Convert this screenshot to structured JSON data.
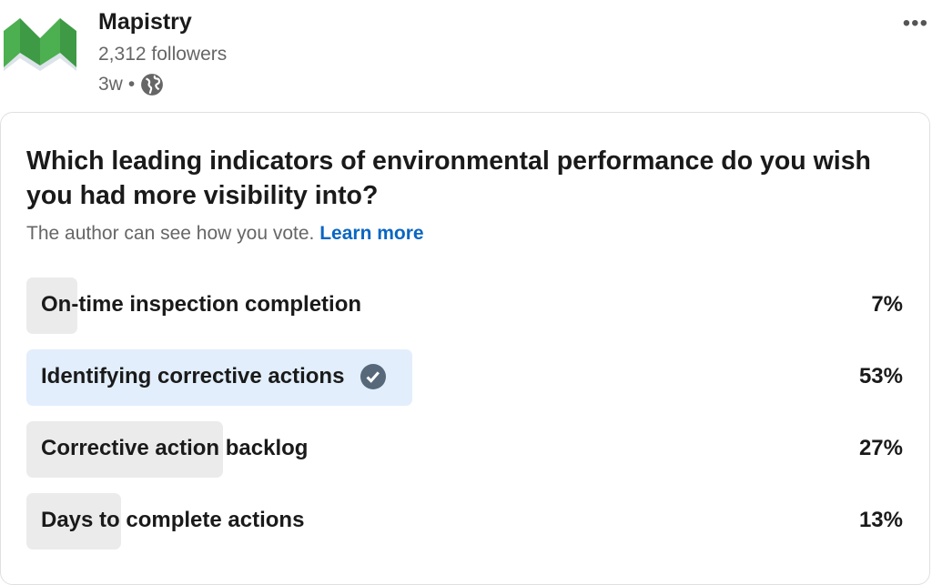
{
  "post": {
    "author": "Mapistry",
    "followers": "2,312 followers",
    "age": "3w",
    "separator": "•",
    "visibility_icon": "globe-icon",
    "more_icon": "more-horizontal-icon",
    "more_label": "•••"
  },
  "poll": {
    "question": "Which leading indicators of environmental performance do you wish you had more visibility into?",
    "note": "The author can see how you vote.",
    "learn_more": "Learn more",
    "options": [
      {
        "label": "On-time inspection completion",
        "percent": "7%",
        "value": 7,
        "selected": false
      },
      {
        "label": "Identifying corrective actions",
        "percent": "53%",
        "value": 53,
        "selected": true
      },
      {
        "label": "Corrective action backlog",
        "percent": "27%",
        "value": 27,
        "selected": false
      },
      {
        "label": "Days to complete actions",
        "percent": "13%",
        "value": 13,
        "selected": false
      }
    ]
  },
  "colors": {
    "brand_green": "#4caf50",
    "selected_bar": "#e2eefb",
    "bar": "#ebebeb",
    "link": "#0a66c2"
  }
}
